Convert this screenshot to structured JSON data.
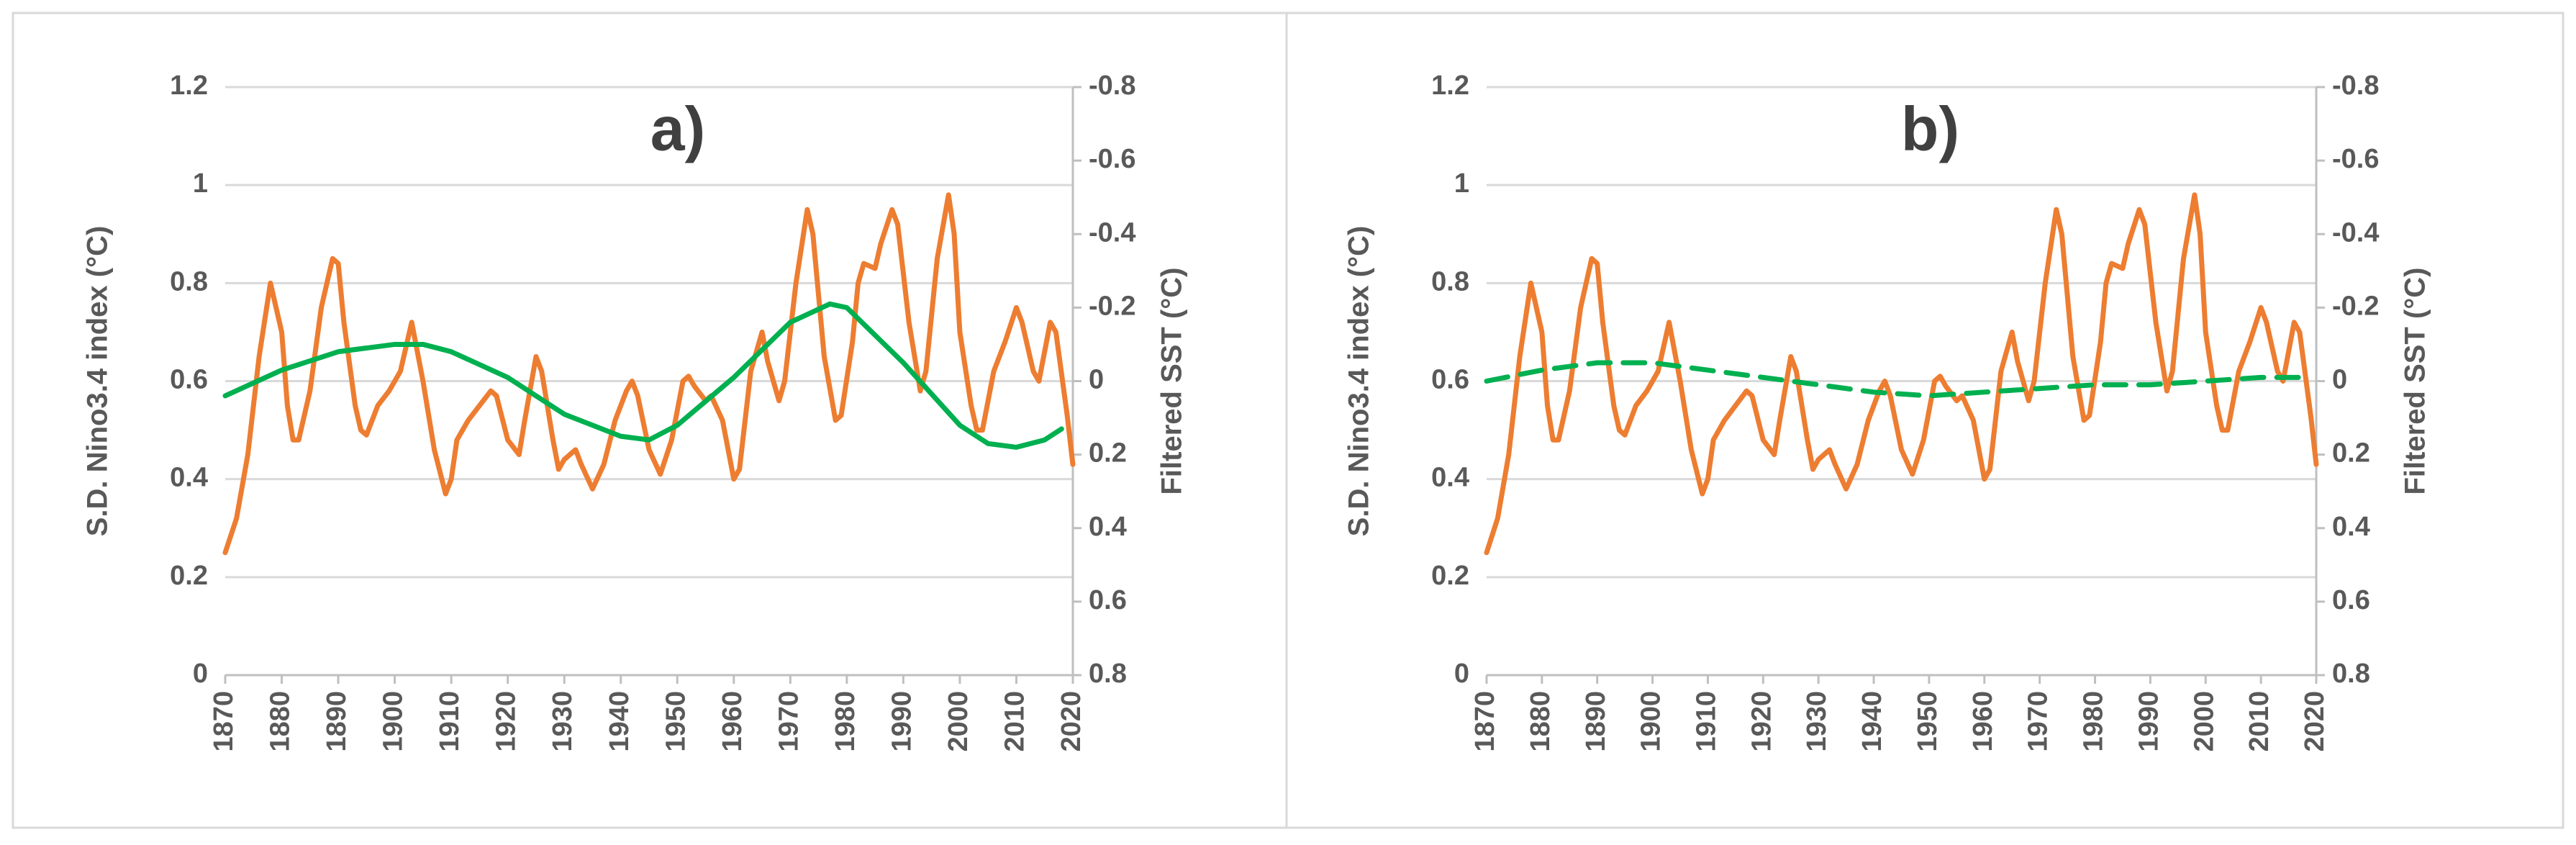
{
  "chart_data": [
    {
      "type": "line",
      "title": "a)",
      "y_label": "S.D. Nino3.4 index (°C)",
      "y2_label": "Filtered SST (°C)",
      "xlim": [
        1870,
        2020
      ],
      "xticks": [
        1870,
        1880,
        1890,
        1900,
        1910,
        1920,
        1930,
        1940,
        1950,
        1960,
        1970,
        1980,
        1990,
        2000,
        2010,
        2020
      ],
      "ylim": [
        0,
        1.2
      ],
      "yticks": [
        0,
        0.2,
        0.4,
        0.6,
        0.8,
        1,
        1.2
      ],
      "y2lim": [
        0.8,
        -0.8
      ],
      "y2ticks": [
        0.8,
        0.6,
        0.4,
        0.2,
        0,
        -0.2,
        -0.4,
        -0.6,
        -0.8
      ],
      "grid": true,
      "series": [
        {
          "color": "#ed7d31",
          "dashed": false,
          "x": [
            1870,
            1872,
            1874,
            1876,
            1878,
            1880,
            1881,
            1882,
            1883,
            1885,
            1887,
            1889,
            1890,
            1891,
            1893,
            1894,
            1895,
            1897,
            1899,
            1901,
            1903,
            1905,
            1907,
            1909,
            1910,
            1911,
            1913,
            1915,
            1917,
            1918,
            1920,
            1922,
            1923,
            1925,
            1926,
            1928,
            1929,
            1930,
            1932,
            1933,
            1935,
            1937,
            1939,
            1941,
            1942,
            1943,
            1945,
            1947,
            1949,
            1951,
            1952,
            1953,
            1955,
            1956,
            1958,
            1960,
            1961,
            1962,
            1963,
            1965,
            1966,
            1968,
            1969,
            1971,
            1973,
            1974,
            1976,
            1978,
            1979,
            1981,
            1982,
            1983,
            1985,
            1986,
            1988,
            1989,
            1991,
            1993,
            1994,
            1996,
            1998,
            1999,
            2000,
            2002,
            2003,
            2004,
            2006,
            2008,
            2010,
            2011,
            2013,
            2014,
            2016,
            2017,
            2019,
            2020
          ],
          "values": [
            0.25,
            0.32,
            0.45,
            0.65,
            0.8,
            0.7,
            0.55,
            0.48,
            0.48,
            0.58,
            0.75,
            0.85,
            0.84,
            0.72,
            0.55,
            0.5,
            0.49,
            0.55,
            0.58,
            0.62,
            0.72,
            0.6,
            0.46,
            0.37,
            0.4,
            0.48,
            0.52,
            0.55,
            0.58,
            0.57,
            0.48,
            0.45,
            0.52,
            0.65,
            0.62,
            0.48,
            0.42,
            0.44,
            0.46,
            0.43,
            0.38,
            0.43,
            0.52,
            0.58,
            0.6,
            0.57,
            0.46,
            0.41,
            0.48,
            0.6,
            0.61,
            0.59,
            0.56,
            0.57,
            0.52,
            0.4,
            0.42,
            0.52,
            0.62,
            0.7,
            0.64,
            0.56,
            0.6,
            0.8,
            0.95,
            0.9,
            0.65,
            0.52,
            0.53,
            0.68,
            0.8,
            0.84,
            0.83,
            0.88,
            0.95,
            0.92,
            0.72,
            0.58,
            0.62,
            0.85,
            0.98,
            0.9,
            0.7,
            0.55,
            0.5,
            0.5,
            0.62,
            0.68,
            0.75,
            0.72,
            0.62,
            0.6,
            0.72,
            0.7,
            0.53,
            0.43
          ]
        },
        {
          "color": "#00b050",
          "axis": "y2",
          "dashed": false,
          "x": [
            1870,
            1880,
            1890,
            1900,
            1905,
            1910,
            1920,
            1930,
            1940,
            1945,
            1950,
            1960,
            1970,
            1977,
            1980,
            1990,
            2000,
            2005,
            2010,
            2015,
            2018
          ],
          "values": [
            0.04,
            -0.03,
            -0.08,
            -0.1,
            -0.1,
            -0.08,
            -0.01,
            0.09,
            0.15,
            0.16,
            0.12,
            -0.01,
            -0.16,
            -0.21,
            -0.2,
            -0.05,
            0.12,
            0.17,
            0.18,
            0.16,
            0.13
          ]
        }
      ]
    },
    {
      "type": "line",
      "title": "b)",
      "y_label": "S.D. Nino3.4 index (°C)",
      "y2_label": "Filtered SST (°C)",
      "xlim": [
        1870,
        2020
      ],
      "xticks": [
        1870,
        1880,
        1890,
        1900,
        1910,
        1920,
        1930,
        1940,
        1950,
        1960,
        1970,
        1980,
        1990,
        2000,
        2010,
        2020
      ],
      "ylim": [
        0,
        1.2
      ],
      "yticks": [
        0,
        0.2,
        0.4,
        0.6,
        0.8,
        1,
        1.2
      ],
      "y2lim": [
        0.8,
        -0.8
      ],
      "y2ticks": [
        0.8,
        0.6,
        0.4,
        0.2,
        0,
        -0.2,
        -0.4,
        -0.6,
        -0.8
      ],
      "grid": true,
      "series": [
        {
          "color": "#ed7d31",
          "dashed": false,
          "x": [
            1870,
            1872,
            1874,
            1876,
            1878,
            1880,
            1881,
            1882,
            1883,
            1885,
            1887,
            1889,
            1890,
            1891,
            1893,
            1894,
            1895,
            1897,
            1899,
            1901,
            1903,
            1905,
            1907,
            1909,
            1910,
            1911,
            1913,
            1915,
            1917,
            1918,
            1920,
            1922,
            1923,
            1925,
            1926,
            1928,
            1929,
            1930,
            1932,
            1933,
            1935,
            1937,
            1939,
            1941,
            1942,
            1943,
            1945,
            1947,
            1949,
            1951,
            1952,
            1953,
            1955,
            1956,
            1958,
            1960,
            1961,
            1962,
            1963,
            1965,
            1966,
            1968,
            1969,
            1971,
            1973,
            1974,
            1976,
            1978,
            1979,
            1981,
            1982,
            1983,
            1985,
            1986,
            1988,
            1989,
            1991,
            1993,
            1994,
            1996,
            1998,
            1999,
            2000,
            2002,
            2003,
            2004,
            2006,
            2008,
            2010,
            2011,
            2013,
            2014,
            2016,
            2017,
            2019,
            2020
          ],
          "values": [
            0.25,
            0.32,
            0.45,
            0.65,
            0.8,
            0.7,
            0.55,
            0.48,
            0.48,
            0.58,
            0.75,
            0.85,
            0.84,
            0.72,
            0.55,
            0.5,
            0.49,
            0.55,
            0.58,
            0.62,
            0.72,
            0.6,
            0.46,
            0.37,
            0.4,
            0.48,
            0.52,
            0.55,
            0.58,
            0.57,
            0.48,
            0.45,
            0.52,
            0.65,
            0.62,
            0.48,
            0.42,
            0.44,
            0.46,
            0.43,
            0.38,
            0.43,
            0.52,
            0.58,
            0.6,
            0.57,
            0.46,
            0.41,
            0.48,
            0.6,
            0.61,
            0.59,
            0.56,
            0.57,
            0.52,
            0.4,
            0.42,
            0.52,
            0.62,
            0.7,
            0.64,
            0.56,
            0.6,
            0.8,
            0.95,
            0.9,
            0.65,
            0.52,
            0.53,
            0.68,
            0.8,
            0.84,
            0.83,
            0.88,
            0.95,
            0.92,
            0.72,
            0.58,
            0.62,
            0.85,
            0.98,
            0.9,
            0.7,
            0.55,
            0.5,
            0.5,
            0.62,
            0.68,
            0.75,
            0.72,
            0.62,
            0.6,
            0.72,
            0.7,
            0.53,
            0.43
          ]
        },
        {
          "color": "#00b050",
          "axis": "y2",
          "dashed": true,
          "x": [
            1870,
            1880,
            1890,
            1900,
            1910,
            1920,
            1930,
            1940,
            1950,
            1960,
            1970,
            1980,
            1990,
            2000,
            2010,
            2018
          ],
          "values": [
            0,
            -0.03,
            -0.05,
            -0.05,
            -0.03,
            -0.01,
            0.01,
            0.03,
            0.04,
            0.03,
            0.02,
            0.01,
            0.01,
            0,
            -0.01,
            -0.01
          ]
        }
      ]
    }
  ]
}
